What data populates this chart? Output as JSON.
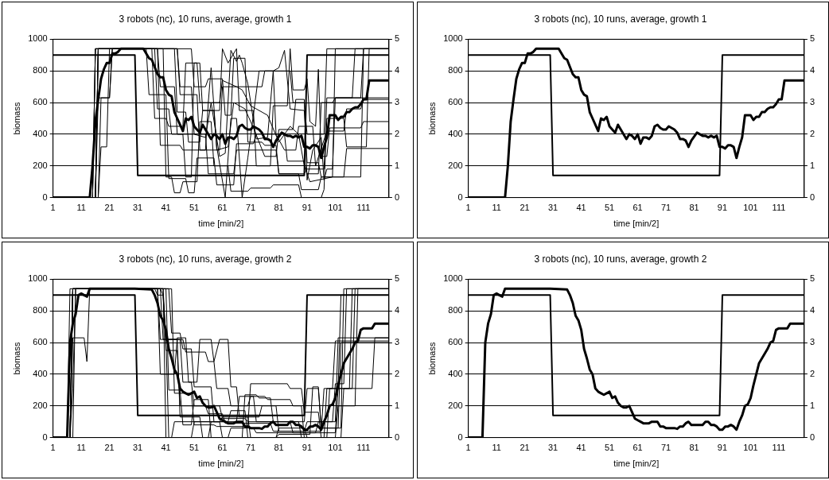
{
  "chart_data": [
    {
      "type": "line",
      "title": "3 robots (nc), 10 runs, average, growth 1",
      "xlabel": "time [min/2]",
      "ylabel": "biomass",
      "xlim": [
        1,
        120
      ],
      "xticks": [
        1,
        11,
        21,
        31,
        41,
        51,
        61,
        71,
        81,
        91,
        101,
        111
      ],
      "ylim": [
        0,
        1000
      ],
      "yticks": [
        0,
        200,
        400,
        600,
        800,
        1000
      ],
      "y2lim": [
        0,
        5
      ],
      "y2ticks": [
        0,
        1,
        2,
        3,
        4,
        5
      ],
      "grid": "y",
      "series": [
        {
          "color": "#000000",
          "x": [
            1,
            14,
            15,
            16,
            17,
            18,
            19,
            20,
            21,
            22,
            23,
            24,
            25,
            30,
            33,
            35,
            36,
            38,
            39,
            40,
            41,
            42,
            43,
            44,
            45,
            47,
            48,
            49,
            50,
            51,
            52,
            53,
            54,
            55,
            56,
            57,
            58,
            59,
            60,
            61,
            62,
            63,
            64,
            65,
            66,
            67,
            68,
            69,
            70,
            71,
            72,
            73,
            74,
            75,
            76,
            77,
            78,
            79,
            80,
            82,
            83,
            84,
            85,
            86,
            87,
            88,
            89,
            90,
            91,
            92,
            93,
            94,
            95,
            96,
            97,
            98,
            99,
            100,
            101,
            102,
            103,
            104,
            105,
            106,
            107,
            108,
            109,
            110,
            111,
            112,
            113,
            114,
            120
          ],
          "values": [
            0,
            0,
            200,
            480,
            620,
            750,
            810,
            850,
            850,
            910,
            910,
            920,
            940,
            940,
            940,
            880,
            870,
            780,
            760,
            760,
            680,
            650,
            640,
            540,
            500,
            420,
            500,
            490,
            510,
            450,
            430,
            410,
            460,
            430,
            400,
            370,
            400,
            390,
            370,
            400,
            340,
            380,
            380,
            370,
            390,
            450,
            460,
            440,
            430,
            430,
            450,
            440,
            430,
            410,
            370,
            370,
            360,
            320,
            360,
            410,
            400,
            390,
            390,
            380,
            390,
            380,
            390,
            320,
            320,
            310,
            330,
            330,
            320,
            250,
            320,
            380,
            520,
            520,
            520,
            490,
            510,
            510,
            540,
            540,
            560,
            570,
            570,
            590,
            620,
            620,
            740,
            740,
            740
          ]
        },
        {
          "color": "#000000",
          "axis": "y2",
          "x": [
            1,
            30,
            31,
            90,
            91,
            120
          ],
          "values": [
            4.5,
            4.5,
            0.7,
            0.7,
            4.5,
            4.5
          ]
        },
        {
          "color": "#000000",
          "x": [
            1,
            15,
            16,
            45,
            46,
            52,
            53,
            60,
            61,
            75,
            76,
            85,
            86,
            90,
            91,
            97,
            98,
            120
          ],
          "values": [
            0,
            0,
            940,
            940,
            650,
            650,
            300,
            300,
            700,
            700,
            800,
            800,
            600,
            600,
            400,
            400,
            940,
            940
          ]
        },
        {
          "color": "#000000",
          "x": [
            1,
            16,
            17,
            21,
            22,
            38,
            39,
            44,
            45,
            55,
            56,
            65,
            66,
            80,
            81,
            90,
            91,
            97,
            98,
            110,
            111,
            120
          ],
          "values": [
            0,
            0,
            630,
            630,
            940,
            940,
            700,
            700,
            400,
            400,
            150,
            150,
            300,
            300,
            150,
            150,
            180,
            180,
            630,
            630,
            940,
            940
          ]
        },
        {
          "color": "#000000",
          "x": [
            1,
            17,
            18,
            20,
            21,
            34,
            35,
            41,
            42,
            48,
            49,
            51,
            52,
            58,
            59,
            65,
            66,
            72,
            73,
            83,
            84,
            90,
            91,
            95,
            96,
            100,
            101,
            120
          ],
          "values": [
            0,
            0,
            320,
            320,
            940,
            940,
            650,
            650,
            120,
            120,
            30,
            30,
            250,
            250,
            80,
            80,
            340,
            340,
            400,
            400,
            230,
            230,
            150,
            150,
            600,
            600,
            630,
            630
          ]
        },
        {
          "color": "#000000",
          "x": [
            1,
            16,
            17,
            37,
            38,
            42,
            43,
            47,
            48,
            50,
            51,
            53,
            54,
            60,
            61,
            63,
            66,
            67,
            72,
            73,
            78,
            79,
            84,
            85,
            86,
            90,
            91,
            92,
            94,
            95,
            96,
            98,
            99,
            110,
            111,
            120
          ],
          "values": [
            0,
            0,
            940,
            940,
            560,
            560,
            400,
            400,
            130,
            130,
            850,
            850,
            550,
            550,
            940,
            850,
            940,
            550,
            550,
            200,
            200,
            580,
            580,
            940,
            680,
            680,
            750,
            480,
            450,
            810,
            260,
            260,
            440,
            440,
            480,
            480
          ]
        },
        {
          "color": "#000000",
          "x": [
            1,
            15,
            16,
            38,
            39,
            46,
            47,
            55,
            56,
            60,
            61,
            66,
            68,
            71,
            73,
            77,
            81,
            85,
            88,
            90,
            92,
            100,
            110,
            111,
            120
          ],
          "values": [
            0,
            0,
            940,
            940,
            330,
            330,
            300,
            300,
            600,
            600,
            740,
            700,
            680,
            580,
            560,
            520,
            350,
            450,
            400,
            200,
            100,
            130,
            130,
            940,
            940
          ]
        },
        {
          "color": "#000000",
          "x": [
            1,
            16,
            17,
            40,
            41,
            43,
            44,
            46,
            47,
            52,
            53,
            57,
            58,
            63,
            64,
            70,
            71,
            78,
            79,
            88,
            89,
            96,
            97,
            98,
            104,
            105,
            112,
            113,
            120
          ],
          "values": [
            0,
            0,
            940,
            940,
            130,
            130,
            30,
            30,
            100,
            100,
            480,
            480,
            200,
            200,
            40,
            40,
            60,
            60,
            80,
            80,
            0,
            0,
            50,
            500,
            500,
            320,
            320,
            940,
            940
          ]
        },
        {
          "color": "#000000",
          "x": [
            1,
            15,
            16,
            50,
            51,
            55,
            56,
            61,
            62,
            64,
            65,
            69,
            70,
            75,
            76,
            80,
            81,
            88,
            89,
            95,
            96,
            104,
            105,
            120
          ],
          "values": [
            0,
            0,
            940,
            940,
            700,
            700,
            750,
            750,
            520,
            520,
            880,
            880,
            350,
            350,
            330,
            330,
            150,
            150,
            50,
            50,
            130,
            130,
            310,
            310
          ]
        },
        {
          "color": "#000000",
          "x": [
            1,
            17,
            18,
            21,
            22,
            36,
            37,
            41,
            42,
            47,
            48,
            52,
            53,
            56,
            57,
            59,
            62,
            64,
            66,
            68,
            70,
            74,
            79,
            80,
            83,
            87,
            88,
            93,
            94,
            98,
            104,
            105,
            110,
            111,
            120
          ],
          "values": [
            0,
            0,
            630,
            630,
            940,
            940,
            500,
            500,
            450,
            450,
            850,
            850,
            600,
            600,
            820,
            320,
            0,
            500,
            500,
            0,
            250,
            800,
            800,
            400,
            300,
            300,
            450,
            450,
            200,
            420,
            420,
            560,
            560,
            620,
            620
          ]
        },
        {
          "color": "#000000",
          "x": [
            1,
            16,
            17,
            45,
            46,
            50,
            51,
            55,
            57,
            60,
            62,
            64,
            66,
            67,
            68,
            70,
            73,
            77,
            79,
            81,
            83,
            85,
            90,
            91,
            95,
            96,
            100,
            101,
            120
          ],
          "values": [
            0,
            0,
            940,
            940,
            700,
            700,
            400,
            380,
            600,
            260,
            280,
            930,
            860,
            900,
            850,
            720,
            370,
            380,
            800,
            820,
            930,
            560,
            550,
            220,
            220,
            130,
            130,
            940,
            940
          ]
        },
        {
          "color": "#000000",
          "x": [
            1,
            16,
            17,
            44,
            45,
            48,
            49,
            53,
            54,
            58,
            59,
            63,
            65,
            69,
            72,
            76,
            80,
            81,
            86,
            87,
            90,
            91,
            93,
            96,
            97,
            98,
            100,
            101,
            107,
            108,
            120
          ],
          "values": [
            0,
            0,
            940,
            940,
            540,
            540,
            350,
            350,
            550,
            550,
            300,
            320,
            600,
            560,
            440,
            260,
            260,
            430,
            430,
            620,
            620,
            110,
            300,
            380,
            110,
            180,
            180,
            630,
            630,
            940,
            940
          ]
        }
      ]
    },
    {
      "type": "line",
      "title": "3 robots (nc), 10 runs, average, growth 1",
      "xlabel": "time [min/2]",
      "ylabel": "biomass",
      "xlim": [
        1,
        120
      ],
      "xticks": [
        1,
        11,
        21,
        31,
        41,
        51,
        61,
        71,
        81,
        91,
        101,
        111
      ],
      "ylim": [
        0,
        1000
      ],
      "yticks": [
        0,
        200,
        400,
        600,
        800,
        1000
      ],
      "y2lim": [
        0,
        5
      ],
      "y2ticks": [
        0,
        1,
        2,
        3,
        4,
        5
      ],
      "grid": "y",
      "series": [
        {
          "color": "#000000",
          "x": [
            1,
            14,
            15,
            16,
            17,
            18,
            19,
            20,
            21,
            22,
            23,
            24,
            25,
            30,
            33,
            35,
            36,
            38,
            39,
            40,
            41,
            42,
            43,
            44,
            45,
            47,
            48,
            49,
            50,
            51,
            52,
            53,
            54,
            55,
            56,
            57,
            58,
            59,
            60,
            61,
            62,
            63,
            64,
            65,
            66,
            67,
            68,
            69,
            70,
            71,
            72,
            73,
            74,
            75,
            76,
            77,
            78,
            79,
            80,
            82,
            83,
            84,
            85,
            86,
            87,
            88,
            89,
            90,
            91,
            92,
            93,
            94,
            95,
            96,
            97,
            98,
            99,
            100,
            101,
            102,
            103,
            104,
            105,
            106,
            107,
            108,
            109,
            110,
            111,
            112,
            113,
            114,
            120
          ],
          "values": [
            0,
            0,
            200,
            480,
            620,
            750,
            810,
            850,
            850,
            910,
            910,
            920,
            940,
            940,
            940,
            880,
            870,
            780,
            760,
            760,
            680,
            650,
            640,
            540,
            500,
            420,
            500,
            490,
            510,
            450,
            430,
            410,
            460,
            430,
            400,
            370,
            400,
            390,
            370,
            400,
            340,
            380,
            380,
            370,
            390,
            450,
            460,
            440,
            430,
            430,
            450,
            440,
            430,
            410,
            370,
            370,
            360,
            320,
            360,
            410,
            400,
            390,
            390,
            380,
            390,
            380,
            390,
            320,
            320,
            310,
            330,
            330,
            320,
            250,
            320,
            380,
            520,
            520,
            520,
            490,
            510,
            510,
            540,
            540,
            560,
            570,
            570,
            590,
            620,
            620,
            740,
            740,
            740
          ]
        },
        {
          "color": "#000000",
          "axis": "y2",
          "x": [
            1,
            30,
            31,
            90,
            91,
            120
          ],
          "values": [
            4.5,
            4.5,
            0.7,
            0.7,
            4.5,
            4.5
          ]
        }
      ]
    },
    {
      "type": "line",
      "title": "3 robots (nc), 10 runs, average, growth 2",
      "xlabel": "time [min/2]",
      "ylabel": "biomass",
      "xlim": [
        1,
        120
      ],
      "xticks": [
        1,
        11,
        21,
        31,
        41,
        51,
        61,
        71,
        81,
        91,
        101,
        111
      ],
      "ylim": [
        0,
        1000
      ],
      "yticks": [
        0,
        200,
        400,
        600,
        800,
        1000
      ],
      "y2lim": [
        0,
        5
      ],
      "y2ticks": [
        0,
        1,
        2,
        3,
        4,
        5
      ],
      "grid": "y",
      "series": [
        {
          "color": "#000000",
          "x": [
            1,
            6,
            7,
            8,
            9,
            10,
            11,
            12,
            13,
            14,
            20,
            30,
            36,
            37,
            38,
            39,
            40,
            41,
            42,
            43,
            44,
            45,
            46,
            47,
            48,
            49,
            50,
            51,
            52,
            53,
            54,
            55,
            56,
            57,
            58,
            59,
            60,
            61,
            62,
            63,
            64,
            65,
            66,
            67,
            68,
            69,
            70,
            71,
            72,
            73,
            74,
            75,
            76,
            77,
            78,
            79,
            80,
            81,
            82,
            83,
            84,
            85,
            86,
            87,
            88,
            89,
            90,
            91,
            92,
            93,
            94,
            95,
            96,
            97,
            98,
            99,
            100,
            101,
            102,
            103,
            104,
            105,
            106,
            107,
            108,
            109,
            110,
            111,
            112,
            113,
            114,
            115,
            120
          ],
          "values": [
            0,
            0,
            600,
            720,
            780,
            900,
            910,
            900,
            890,
            940,
            940,
            940,
            935,
            900,
            850,
            770,
            740,
            680,
            560,
            500,
            430,
            400,
            310,
            290,
            280,
            270,
            280,
            290,
            250,
            260,
            220,
            200,
            190,
            190,
            200,
            160,
            120,
            110,
            100,
            90,
            90,
            90,
            100,
            100,
            100,
            70,
            70,
            60,
            60,
            60,
            60,
            55,
            70,
            70,
            90,
            100,
            80,
            80,
            80,
            80,
            80,
            100,
            100,
            80,
            80,
            70,
            50,
            50,
            70,
            70,
            80,
            70,
            50,
            100,
            140,
            200,
            210,
            250,
            330,
            400,
            470,
            500,
            530,
            560,
            600,
            610,
            680,
            690,
            690,
            690,
            690,
            720,
            720
          ]
        },
        {
          "color": "#000000",
          "axis": "y2",
          "x": [
            1,
            30,
            31,
            90,
            91,
            120
          ],
          "values": [
            4.5,
            4.5,
            0.7,
            0.7,
            4.5,
            4.5
          ]
        },
        {
          "color": "#000000",
          "x": [
            1,
            7,
            8,
            40,
            41,
            46,
            47,
            50,
            51,
            60,
            61,
            69,
            70,
            88,
            89,
            97,
            98,
            106,
            107,
            120
          ],
          "values": [
            0,
            0,
            940,
            940,
            620,
            620,
            350,
            350,
            200,
            200,
            120,
            120,
            100,
            100,
            0,
            0,
            310,
            310,
            940,
            940
          ]
        },
        {
          "color": "#000000",
          "x": [
            1,
            7,
            8,
            12,
            13,
            14,
            38,
            39,
            44,
            45,
            48,
            49,
            52,
            53,
            57,
            58,
            60,
            63,
            64,
            66,
            67,
            74,
            75,
            80,
            81,
            96,
            97,
            100,
            101,
            120
          ],
          "values": [
            0,
            0,
            630,
            630,
            480,
            940,
            940,
            400,
            400,
            630,
            630,
            350,
            350,
            620,
            620,
            480,
            620,
            620,
            320,
            320,
            130,
            130,
            200,
            200,
            40,
            40,
            310,
            310,
            610,
            610
          ]
        },
        {
          "color": "#000000",
          "x": [
            1,
            7,
            8,
            39,
            40,
            47,
            48,
            55,
            56,
            58,
            59,
            63,
            64,
            70,
            71,
            76,
            77,
            85,
            86,
            89,
            90,
            103,
            104,
            107,
            108,
            120
          ],
          "values": [
            0,
            0,
            940,
            940,
            620,
            620,
            540,
            540,
            480,
            480,
            310,
            310,
            200,
            200,
            260,
            260,
            240,
            240,
            200,
            200,
            0,
            0,
            310,
            310,
            940,
            940
          ]
        },
        {
          "color": "#000000",
          "x": [
            1,
            7,
            8,
            42,
            43,
            46,
            47,
            50,
            51,
            57,
            58,
            66,
            67,
            72,
            73,
            85,
            86,
            94,
            95,
            101,
            102,
            120
          ],
          "values": [
            0,
            0,
            940,
            940,
            660,
            660,
            560,
            560,
            320,
            320,
            100,
            100,
            260,
            260,
            100,
            100,
            30,
            30,
            100,
            100,
            630,
            630
          ]
        },
        {
          "color": "#000000",
          "x": [
            1,
            8,
            9,
            38,
            39,
            41,
            42,
            50,
            51,
            60,
            61,
            70,
            71,
            80,
            81,
            90,
            91,
            98,
            99,
            102,
            103,
            120
          ],
          "values": [
            0,
            0,
            940,
            940,
            620,
            620,
            0,
            0,
            100,
            100,
            130,
            130,
            0,
            0,
            60,
            60,
            0,
            0,
            310,
            310,
            900,
            900
          ]
        },
        {
          "color": "#000000",
          "x": [
            1,
            7,
            8,
            41,
            42,
            46,
            47,
            50,
            51,
            56,
            57,
            63,
            64,
            72,
            73,
            101,
            102,
            114,
            115,
            120
          ],
          "values": [
            0,
            0,
            940,
            940,
            300,
            300,
            80,
            80,
            240,
            240,
            0,
            0,
            60,
            60,
            30,
            30,
            310,
            310,
            630,
            630
          ]
        },
        {
          "color": "#000000",
          "x": [
            1,
            6,
            7,
            37,
            38,
            40,
            41,
            45,
            46,
            55,
            56,
            61,
            62,
            78,
            79,
            90,
            91,
            100,
            101,
            104,
            105,
            120
          ],
          "values": [
            0,
            0,
            940,
            940,
            900,
            900,
            550,
            550,
            200,
            200,
            150,
            150,
            90,
            90,
            40,
            40,
            100,
            100,
            340,
            340,
            940,
            940
          ]
        },
        {
          "color": "#000000",
          "x": [
            1,
            7,
            8,
            9,
            43,
            44,
            50,
            51,
            58,
            59,
            70,
            71,
            84,
            85,
            89,
            90,
            95,
            96,
            101,
            102,
            108,
            109,
            120
          ],
          "values": [
            0,
            0,
            310,
            940,
            940,
            280,
            280,
            80,
            80,
            70,
            70,
            340,
            340,
            310,
            310,
            160,
            160,
            0,
            0,
            200,
            200,
            940,
            940
          ]
        },
        {
          "color": "#000000",
          "x": [
            1,
            7,
            8,
            39,
            40,
            41,
            45,
            46,
            53,
            54,
            56,
            57,
            63,
            64,
            69,
            70,
            80,
            81,
            92,
            93,
            95,
            96,
            103,
            104,
            120
          ],
          "values": [
            0,
            0,
            940,
            940,
            900,
            620,
            620,
            130,
            130,
            0,
            0,
            100,
            100,
            170,
            170,
            0,
            0,
            20,
            20,
            320,
            320,
            60,
            60,
            940,
            940
          ]
        },
        {
          "color": "#000000",
          "x": [
            1,
            7,
            8,
            40,
            41,
            43,
            44,
            60,
            61,
            68,
            69,
            73,
            74,
            78,
            79,
            90,
            91,
            95,
            96,
            102,
            103,
            120
          ],
          "values": [
            0,
            0,
            940,
            940,
            0,
            0,
            100,
            100,
            0,
            0,
            270,
            270,
            250,
            250,
            100,
            100,
            310,
            310,
            60,
            60,
            600,
            600
          ]
        }
      ]
    },
    {
      "type": "line",
      "title": "3 robots (nc), 10 runs, average, growth 2",
      "xlabel": "time [min/2]",
      "ylabel": "biomass",
      "xlim": [
        1,
        120
      ],
      "xticks": [
        1,
        11,
        21,
        31,
        41,
        51,
        61,
        71,
        81,
        91,
        101,
        111
      ],
      "ylim": [
        0,
        1000
      ],
      "yticks": [
        0,
        200,
        400,
        600,
        800,
        1000
      ],
      "y2lim": [
        0,
        5
      ],
      "y2ticks": [
        0,
        1,
        2,
        3,
        4,
        5
      ],
      "grid": "y",
      "series": [
        {
          "color": "#000000",
          "x": [
            1,
            6,
            7,
            8,
            9,
            10,
            11,
            12,
            13,
            14,
            20,
            30,
            36,
            37,
            38,
            39,
            40,
            41,
            42,
            43,
            44,
            45,
            46,
            47,
            48,
            49,
            50,
            51,
            52,
            53,
            54,
            55,
            56,
            57,
            58,
            59,
            60,
            61,
            62,
            63,
            64,
            65,
            66,
            67,
            68,
            69,
            70,
            71,
            72,
            73,
            74,
            75,
            76,
            77,
            78,
            79,
            80,
            81,
            82,
            83,
            84,
            85,
            86,
            87,
            88,
            89,
            90,
            91,
            92,
            93,
            94,
            95,
            96,
            97,
            98,
            99,
            100,
            101,
            102,
            103,
            104,
            105,
            106,
            107,
            108,
            109,
            110,
            111,
            112,
            113,
            114,
            115,
            120
          ],
          "values": [
            0,
            0,
            600,
            720,
            780,
            900,
            910,
            900,
            890,
            940,
            940,
            940,
            935,
            900,
            850,
            770,
            740,
            680,
            560,
            500,
            430,
            400,
            310,
            290,
            280,
            270,
            280,
            290,
            250,
            260,
            220,
            200,
            190,
            190,
            200,
            160,
            120,
            110,
            100,
            90,
            90,
            90,
            100,
            100,
            100,
            70,
            70,
            60,
            60,
            60,
            60,
            55,
            70,
            70,
            90,
            100,
            80,
            80,
            80,
            80,
            80,
            100,
            100,
            80,
            80,
            70,
            50,
            50,
            70,
            70,
            80,
            70,
            50,
            100,
            140,
            200,
            210,
            250,
            330,
            400,
            470,
            500,
            530,
            560,
            600,
            610,
            680,
            690,
            690,
            690,
            690,
            720,
            720
          ]
        },
        {
          "color": "#000000",
          "axis": "y2",
          "x": [
            1,
            30,
            31,
            90,
            91,
            120
          ],
          "values": [
            4.5,
            4.5,
            0.7,
            0.7,
            4.5,
            4.5
          ]
        }
      ]
    }
  ]
}
